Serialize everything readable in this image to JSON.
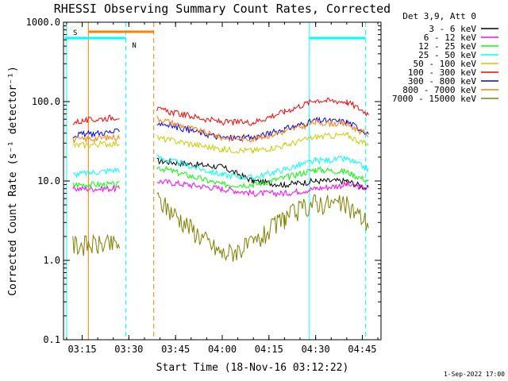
{
  "chart_data": {
    "type": "line",
    "title": "RHESSI Observing Summary Count Rates, Corrected",
    "xlabel": "Start Time (18-Nov-16 03:12:22)",
    "ylabel": "Corrected Count Rate (s⁻¹ detector⁻¹)",
    "yscale": "log",
    "ylim": [
      0.1,
      1000.0
    ],
    "xlim": [
      "03:09",
      "04:51"
    ],
    "x_ticks": [
      "03:15",
      "03:30",
      "03:45",
      "04:00",
      "04:15",
      "04:30",
      "04:45"
    ],
    "y_ticks": [
      "0.1",
      "1.0",
      "10.0",
      "100.0",
      "1000.0"
    ],
    "grid": false,
    "legend_position": "right",
    "legend_header": "Det 3,9, Att 0",
    "timestamp": "1-Sep-2022 17:00",
    "time_breakpoints": [
      "03:12",
      "03:27",
      "03:39",
      "04:00",
      "04:10",
      "04:20",
      "04:30",
      "04:40",
      "04:47"
    ],
    "series": [
      {
        "name": "3 - 6 keV",
        "color": "#000000",
        "segments": [
          [
            null,
            null
          ],
          [
            null,
            null,
            18,
            15,
            10,
            9,
            10,
            10,
            8
          ]
        ]
      },
      {
        "name": "6 - 12 keV",
        "color": "#ff00ff",
        "segments": [
          [
            8,
            8
          ],
          [
            null,
            null,
            10,
            8,
            7,
            7,
            8,
            9,
            8
          ]
        ]
      },
      {
        "name": "12 - 25 keV",
        "color": "#00ff00",
        "segments": [
          [
            9,
            9
          ],
          [
            null,
            null,
            15,
            9,
            9,
            11,
            14,
            13,
            10
          ]
        ]
      },
      {
        "name": "25 - 50 keV",
        "color": "#00ffff",
        "segments": [
          [
            12,
            14
          ],
          [
            null,
            null,
            20,
            12,
            11,
            14,
            18,
            19,
            14
          ]
        ]
      },
      {
        "name": "50 - 100 keV",
        "color": "#cccc00",
        "segments": [
          [
            28,
            30
          ],
          [
            null,
            null,
            35,
            25,
            24,
            28,
            36,
            38,
            28
          ]
        ]
      },
      {
        "name": "100 - 300 keV",
        "color": "#ff0000",
        "segments": [
          [
            55,
            65
          ],
          [
            null,
            null,
            80,
            55,
            55,
            75,
            105,
            100,
            70
          ]
        ]
      },
      {
        "name": "300 - 800 keV",
        "color": "#0000ff",
        "segments": [
          [
            38,
            42
          ],
          [
            null,
            null,
            55,
            35,
            35,
            45,
            58,
            56,
            40
          ]
        ]
      },
      {
        "name": "800 - 7000 keV",
        "color": "#ff8000",
        "segments": [
          [
            33,
            36
          ],
          [
            null,
            null,
            62,
            35,
            34,
            42,
            55,
            52,
            38
          ]
        ]
      },
      {
        "name": "7000 - 15000 keV",
        "color": "#808000",
        "segments": [
          [
            1.6,
            1.6
          ],
          [
            null,
            null,
            6,
            1.2,
            1.6,
            3.5,
            5.5,
            5.0,
            3.0
          ]
        ]
      }
    ],
    "annotations": [
      {
        "label": "S",
        "color": "#ff8000"
      },
      {
        "label": "N",
        "color": "#00ffff"
      }
    ]
  }
}
